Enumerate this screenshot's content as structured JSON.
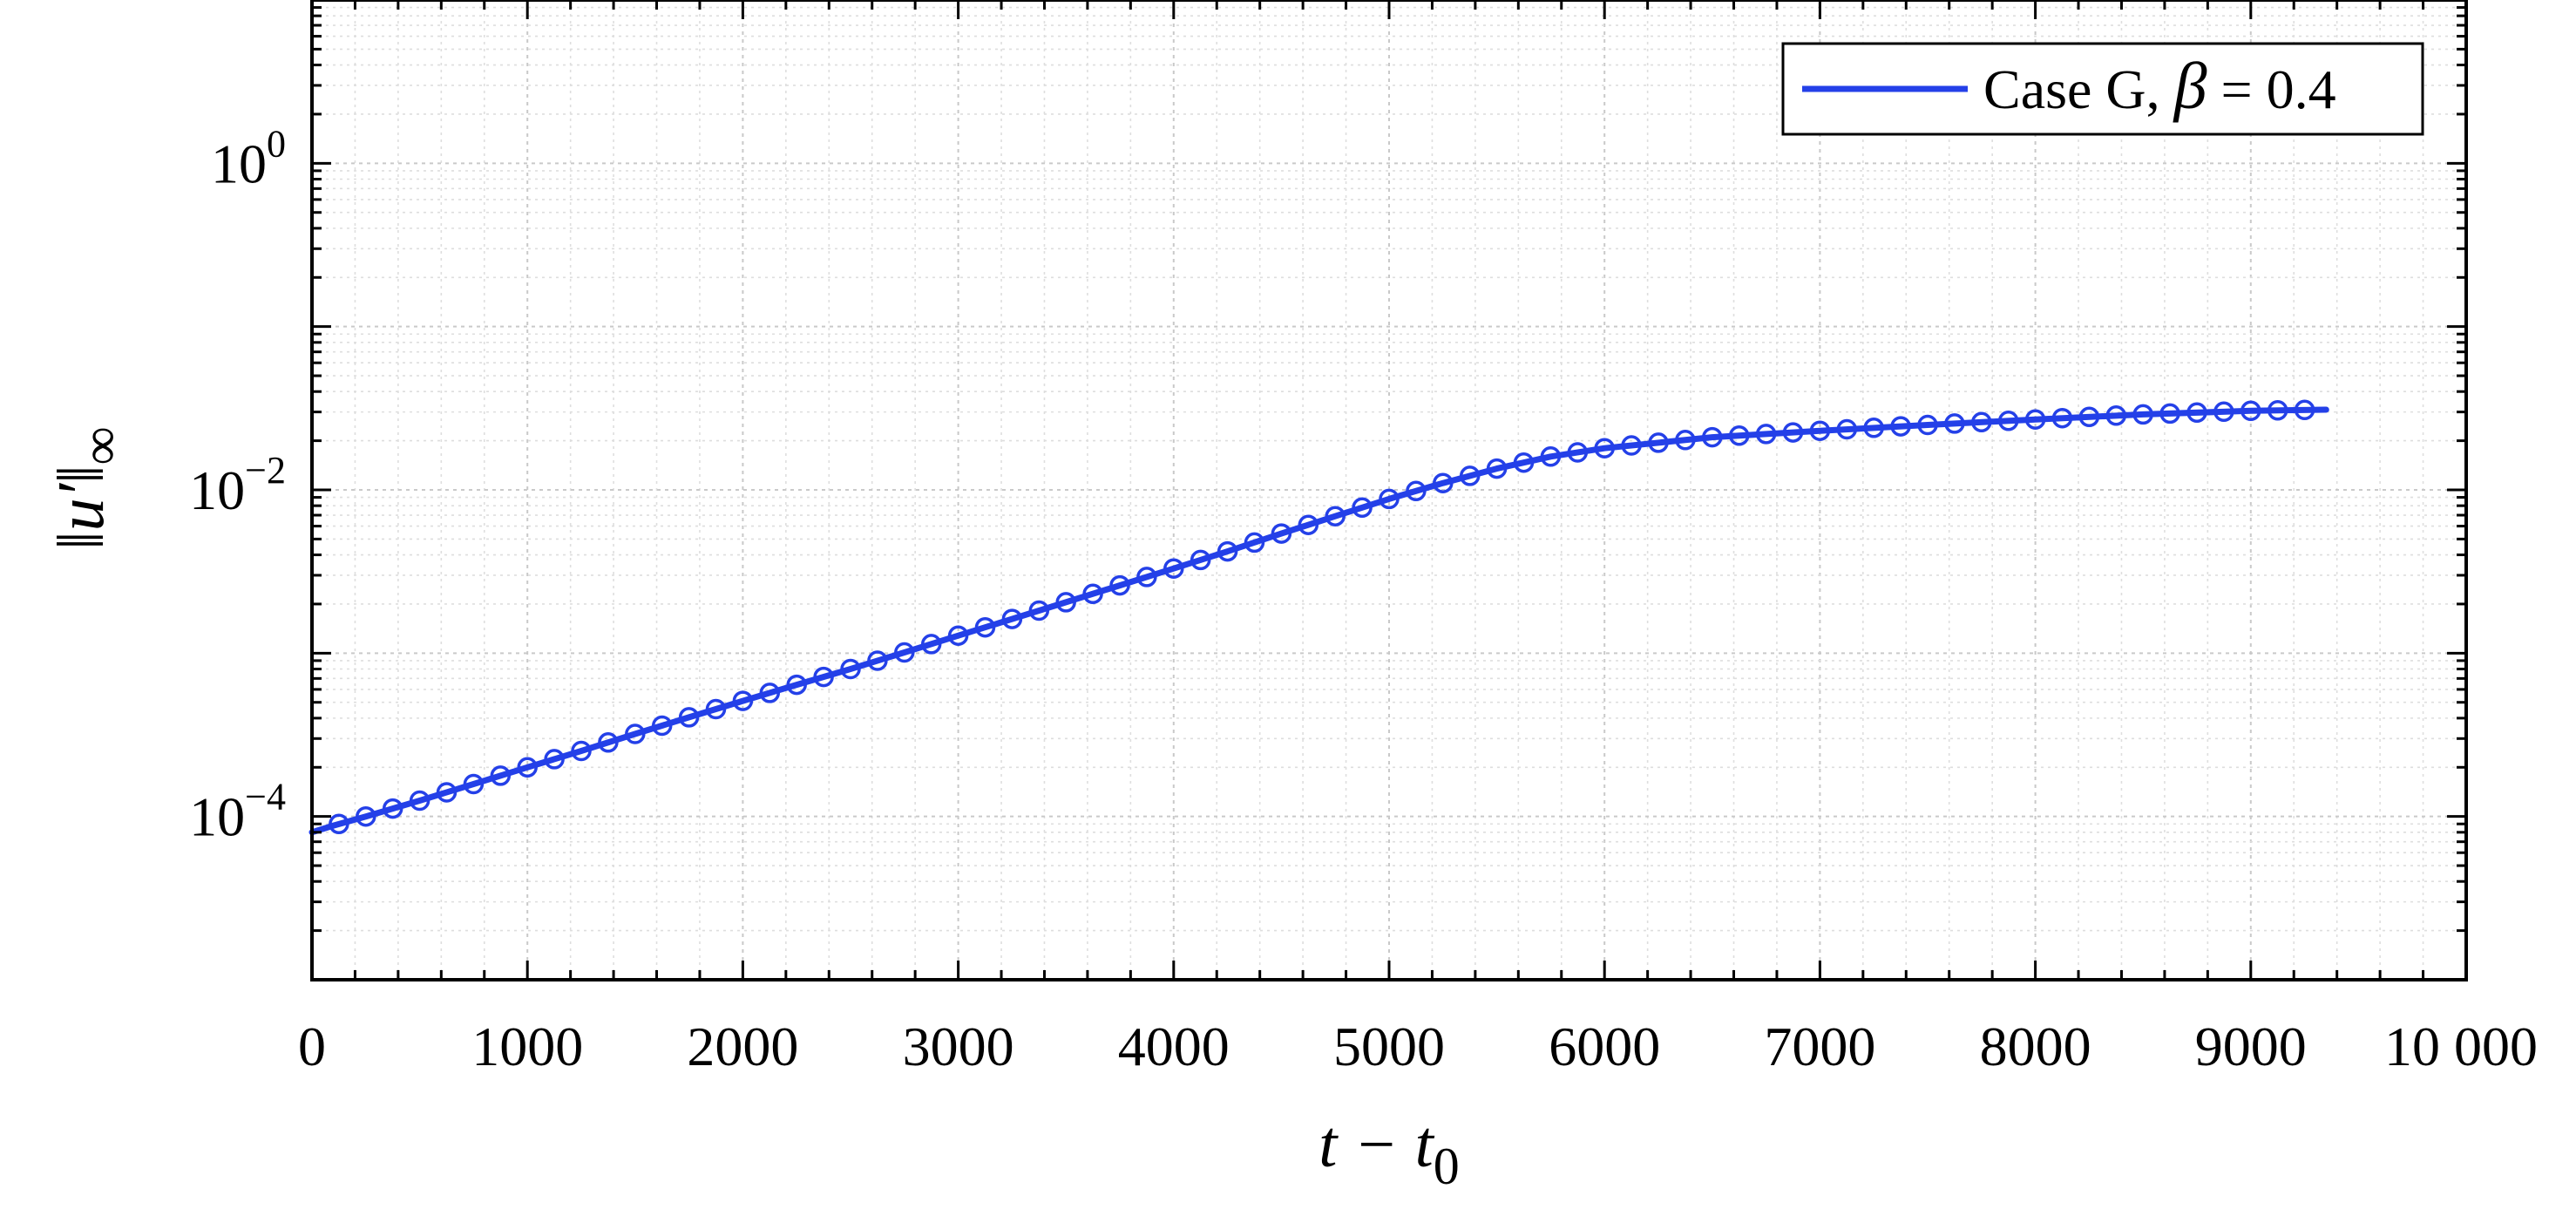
{
  "chart_data": {
    "type": "line",
    "xlabel": "t − t0",
    "xlabel_main": "t − t",
    "xlabel_sub": "0",
    "ylabel": "‖u′‖∞",
    "ylabel_main": "‖u′‖",
    "ylabel_sub": "∞",
    "xlim": [
      0,
      10000
    ],
    "ylim": [
      1e-05,
      10
    ],
    "yscale": "log",
    "grid": true,
    "minor_grid": true,
    "legend_position": "top-right",
    "x_ticks": [
      {
        "value": 0,
        "label": "0"
      },
      {
        "value": 1000,
        "label": "1000"
      },
      {
        "value": 2000,
        "label": "2000"
      },
      {
        "value": 3000,
        "label": "3000"
      },
      {
        "value": 4000,
        "label": "4000"
      },
      {
        "value": 5000,
        "label": "5000"
      },
      {
        "value": 6000,
        "label": "6000"
      },
      {
        "value": 7000,
        "label": "7000"
      },
      {
        "value": 8000,
        "label": "8000"
      },
      {
        "value": 9000,
        "label": "9000"
      },
      {
        "value": 10000,
        "label": "10 000"
      }
    ],
    "y_ticks": [
      {
        "value": 0.0001,
        "base": "10",
        "exp": "−4"
      },
      {
        "value": 0.01,
        "base": "10",
        "exp": "−2"
      },
      {
        "value": 1,
        "base": "10",
        "exp": "0"
      }
    ],
    "series": [
      {
        "legend_label": "Case G, ",
        "legend_symbol": "β",
        "legend_value": " = 0.4",
        "color": "#2440e8",
        "marker": "circle",
        "x": [
          0,
          100,
          250,
          500,
          750,
          1000,
          1250,
          1500,
          1750,
          2000,
          2250,
          2500,
          2750,
          3000,
          3250,
          3500,
          3750,
          4000,
          4250,
          4500,
          4750,
          5000,
          5250,
          5500,
          5750,
          6000,
          6500,
          7000,
          7500,
          8000,
          8500,
          9000,
          9350
        ],
        "y": [
          8e-05,
          8.8e-05,
          0.0001,
          0.000125,
          0.000158,
          0.0002,
          0.000252,
          0.00032,
          0.000405,
          0.00051,
          0.00064,
          0.0008,
          0.00101,
          0.00128,
          0.00162,
          0.00205,
          0.0026,
          0.0033,
          0.0042,
          0.0054,
          0.0069,
          0.0088,
          0.011,
          0.0135,
          0.016,
          0.018,
          0.021,
          0.023,
          0.025,
          0.027,
          0.029,
          0.0305,
          0.031
        ]
      }
    ]
  }
}
